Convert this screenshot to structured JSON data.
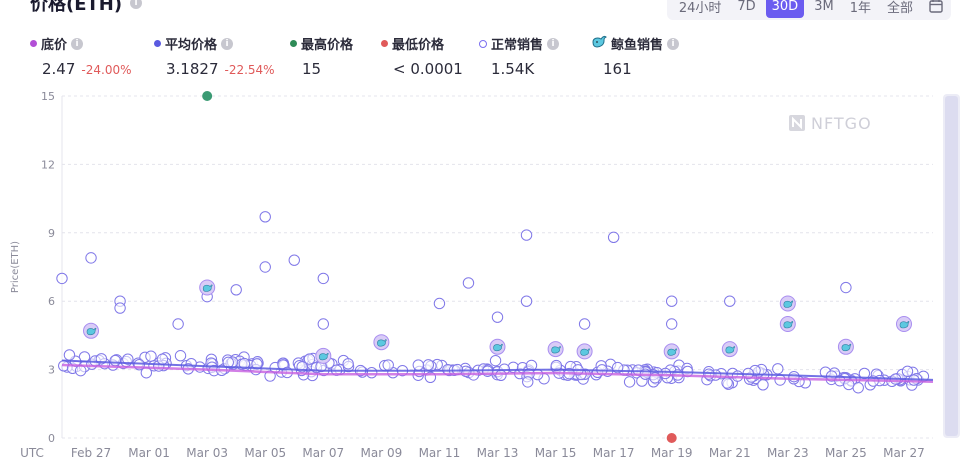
{
  "header": {
    "title": "价格(ETH)",
    "ranges": [
      "24小时",
      "7D",
      "30D",
      "3M",
      "1年",
      "全部"
    ],
    "active_range": "30D"
  },
  "stats": [
    {
      "key": "floor",
      "label": "底价",
      "value": "2.47",
      "change": "-24.00%",
      "color": "#b24fd6",
      "icon": "info-icon"
    },
    {
      "key": "avg",
      "label": "平均价格",
      "value": "3.1827",
      "change": "-22.54%",
      "color": "#5a5ae0",
      "icon": "info-icon"
    },
    {
      "key": "max",
      "label": "最高价格",
      "value": "15",
      "change": "",
      "color": "#2e8b57",
      "icon": ""
    },
    {
      "key": "min",
      "label": "最低价格",
      "value": "< 0.0001",
      "change": "",
      "color": "#e05a5a",
      "icon": ""
    },
    {
      "key": "normal",
      "label": "正常销售",
      "value": "1.54K",
      "change": "",
      "color": "#7b6ff0",
      "icon": "info-icon"
    },
    {
      "key": "whale",
      "label": "鲸鱼销售",
      "value": "161",
      "change": "",
      "color": "#38a8c8",
      "icon": "whale-icon"
    }
  ],
  "watermark": "NFTGO",
  "chart_data": {
    "type": "scatter",
    "ylabel": "Price(ETH)",
    "ylim": [
      0,
      15
    ],
    "yticks": [
      0,
      3,
      6,
      9,
      12,
      15
    ],
    "xlim": [
      "2022-02-26",
      "2022-03-28"
    ],
    "xtick_labels": [
      "UTC",
      "Feb 27",
      "Mar 01",
      "Mar 03",
      "Mar 05",
      "Mar 07",
      "Mar 09",
      "Mar 11",
      "Mar 13",
      "Mar 15",
      "Mar 17",
      "Mar 19",
      "Mar 21",
      "Mar 23",
      "Mar 25",
      "Mar 27"
    ],
    "grid": true,
    "highest_sale": {
      "x": "2022-03-03",
      "y": 15
    },
    "lowest_sale": {
      "x": "2022-03-19",
      "y": 0.0001
    },
    "avg_line": {
      "name": "平均价格",
      "x": [
        "2022-02-26",
        "2022-03-03",
        "2022-03-07",
        "2022-03-11",
        "2022-03-15",
        "2022-03-19",
        "2022-03-23",
        "2022-03-28"
      ],
      "y": [
        3.4,
        3.15,
        2.95,
        2.95,
        3.0,
        2.9,
        2.75,
        2.55
      ]
    },
    "floor_line": {
      "name": "底价",
      "x": [
        "2022-02-26",
        "2022-03-03",
        "2022-03-07",
        "2022-03-11",
        "2022-03-15",
        "2022-03-19",
        "2022-03-23",
        "2022-03-28"
      ],
      "y": [
        3.2,
        3.0,
        2.8,
        2.8,
        2.85,
        2.75,
        2.6,
        2.47
      ]
    },
    "outliers": [
      {
        "x": "2022-02-26",
        "y": 7.0
      },
      {
        "x": "2022-02-27",
        "y": 7.9
      },
      {
        "x": "2022-02-28",
        "y": 6.0
      },
      {
        "x": "2022-02-28",
        "y": 5.7
      },
      {
        "x": "2022-03-02",
        "y": 5.0
      },
      {
        "x": "2022-03-03",
        "y": 6.2
      },
      {
        "x": "2022-03-04",
        "y": 6.5
      },
      {
        "x": "2022-03-05",
        "y": 9.7
      },
      {
        "x": "2022-03-05",
        "y": 7.5
      },
      {
        "x": "2022-03-06",
        "y": 7.8
      },
      {
        "x": "2022-03-07",
        "y": 7.0
      },
      {
        "x": "2022-03-07",
        "y": 5.0
      },
      {
        "x": "2022-03-11",
        "y": 5.9
      },
      {
        "x": "2022-03-12",
        "y": 6.8
      },
      {
        "x": "2022-03-13",
        "y": 5.3
      },
      {
        "x": "2022-03-14",
        "y": 6.0
      },
      {
        "x": "2022-03-14",
        "y": 8.9
      },
      {
        "x": "2022-03-16",
        "y": 5.0
      },
      {
        "x": "2022-03-17",
        "y": 8.8
      },
      {
        "x": "2022-03-19",
        "y": 6.0
      },
      {
        "x": "2022-03-19",
        "y": 5.0
      },
      {
        "x": "2022-03-21",
        "y": 6.0
      },
      {
        "x": "2022-03-23",
        "y": 5.9
      },
      {
        "x": "2022-03-23",
        "y": 5.0
      },
      {
        "x": "2022-03-25",
        "y": 6.6
      },
      {
        "x": "2022-03-27",
        "y": 5.0
      }
    ],
    "whale_sales": [
      {
        "x": "2022-02-27",
        "y": 4.7
      },
      {
        "x": "2022-03-03",
        "y": 6.6
      },
      {
        "x": "2022-03-07",
        "y": 3.6
      },
      {
        "x": "2022-03-09",
        "y": 4.2
      },
      {
        "x": "2022-03-13",
        "y": 4.0
      },
      {
        "x": "2022-03-15",
        "y": 3.9
      },
      {
        "x": "2022-03-16",
        "y": 3.8
      },
      {
        "x": "2022-03-19",
        "y": 3.8
      },
      {
        "x": "2022-03-21",
        "y": 3.9
      },
      {
        "x": "2022-03-23",
        "y": 5.9
      },
      {
        "x": "2022-03-23",
        "y": 5.0
      },
      {
        "x": "2022-03-25",
        "y": 4.0
      },
      {
        "x": "2022-03-27",
        "y": 5.0
      }
    ],
    "normal_band": {
      "center_start": 3.35,
      "center_end": 2.55,
      "spread": 0.55,
      "count": 260
    }
  }
}
